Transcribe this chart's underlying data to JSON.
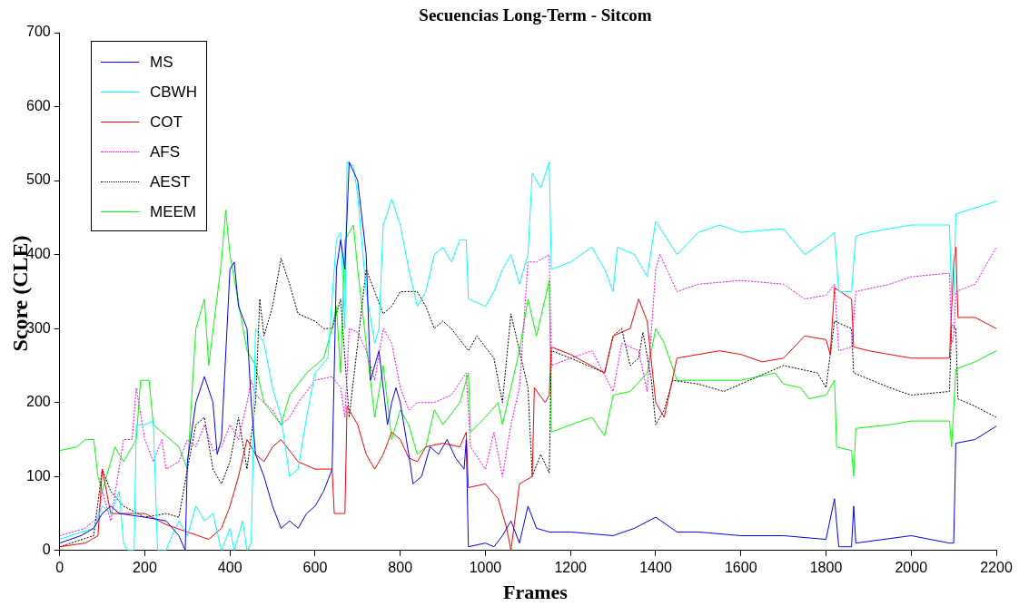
{
  "chart_data": {
    "type": "line",
    "title": "Secuencias Long-Term - Sitcom",
    "xlabel": "Frames",
    "ylabel": "Score (CLE)",
    "xlim": [
      0,
      2200
    ],
    "xticks": [
      0,
      200,
      400,
      600,
      800,
      1000,
      1200,
      1400,
      1600,
      1800,
      2000,
      2200
    ],
    "ylim": [
      0,
      700
    ],
    "yticks": [
      0,
      100,
      200,
      300,
      400,
      500,
      600,
      700
    ],
    "grid": false,
    "legend": "top left",
    "marker": "none",
    "line_style": "solid",
    "series": [
      {
        "name": "MS",
        "color": "#0000ff",
        "x": [
          0,
          50,
          80,
          100,
          120,
          140,
          200,
          250,
          280,
          295,
          300,
          320,
          340,
          360,
          370,
          380,
          400,
          410,
          420,
          440,
          450,
          460,
          480,
          500,
          520,
          540,
          560,
          580,
          600,
          620,
          640,
          650,
          660,
          670,
          680,
          700,
          710,
          720,
          730,
          750,
          770,
          780,
          790,
          800,
          820,
          830,
          850,
          870,
          890,
          910,
          930,
          950,
          955,
          960,
          1000,
          1020,
          1040,
          1060,
          1080,
          1100,
          1120,
          1150,
          1200,
          1300,
          1350,
          1400,
          1450,
          1500,
          1600,
          1700,
          1800,
          1820,
          1830,
          1860,
          1865,
          1870,
          2000,
          2090,
          2100,
          2105,
          2150,
          2200
        ],
        "values": [
          10,
          20,
          30,
          50,
          60,
          50,
          45,
          40,
          20,
          0,
          120,
          200,
          235,
          200,
          130,
          150,
          380,
          390,
          330,
          300,
          200,
          130,
          100,
          60,
          30,
          40,
          30,
          50,
          60,
          80,
          110,
          380,
          420,
          380,
          525,
          500,
          450,
          400,
          230,
          270,
          170,
          200,
          220,
          200,
          130,
          90,
          100,
          140,
          130,
          150,
          125,
          110,
          150,
          5,
          10,
          5,
          20,
          40,
          10,
          60,
          30,
          25,
          25,
          20,
          30,
          45,
          25,
          25,
          20,
          20,
          15,
          70,
          5,
          5,
          60,
          10,
          20,
          10,
          10,
          145,
          150,
          168
        ]
      },
      {
        "name": "CBWH",
        "color": "#00ffff",
        "x": [
          0,
          50,
          80,
          100,
          120,
          140,
          150,
          160,
          175,
          180,
          200,
          220,
          230,
          250,
          260,
          280,
          300,
          320,
          340,
          360,
          380,
          400,
          410,
          430,
          440,
          450,
          460,
          480,
          500,
          520,
          540,
          560,
          580,
          600,
          630,
          650,
          660,
          670,
          675,
          690,
          700,
          720,
          740,
          750,
          760,
          780,
          800,
          820,
          840,
          860,
          880,
          900,
          920,
          940,
          955,
          960,
          1000,
          1020,
          1040,
          1060,
          1080,
          1100,
          1110,
          1130,
          1150,
          1155,
          1200,
          1250,
          1280,
          1300,
          1310,
          1350,
          1380,
          1400,
          1450,
          1500,
          1550,
          1600,
          1700,
          1750,
          1800,
          1820,
          1830,
          1860,
          1870,
          1900,
          2000,
          2090,
          2095,
          2100,
          2105,
          2200
        ],
        "values": [
          15,
          25,
          30,
          60,
          50,
          80,
          10,
          0,
          0,
          170,
          170,
          175,
          0,
          0,
          15,
          40,
          20,
          60,
          40,
          50,
          0,
          30,
          0,
          40,
          0,
          10,
          300,
          280,
          220,
          180,
          100,
          110,
          180,
          240,
          260,
          420,
          430,
          300,
          525,
          520,
          480,
          350,
          280,
          300,
          440,
          475,
          440,
          380,
          330,
          350,
          400,
          410,
          390,
          420,
          420,
          340,
          330,
          350,
          380,
          400,
          360,
          400,
          510,
          490,
          525,
          380,
          390,
          410,
          380,
          350,
          410,
          400,
          370,
          445,
          400,
          430,
          440,
          430,
          435,
          400,
          420,
          430,
          350,
          350,
          425,
          430,
          440,
          440,
          345,
          345,
          455,
          472
        ]
      },
      {
        "name": "COT",
        "color": "#ff0000",
        "x": [
          0,
          60,
          90,
          100,
          120,
          200,
          250,
          300,
          350,
          380,
          400,
          420,
          440,
          460,
          480,
          500,
          520,
          560,
          600,
          640,
          645,
          670,
          675,
          700,
          720,
          740,
          760,
          780,
          800,
          820,
          840,
          860,
          900,
          940,
          955,
          960,
          1000,
          1030,
          1050,
          1060,
          1080,
          1110,
          1115,
          1140,
          1150,
          1155,
          1200,
          1280,
          1300,
          1340,
          1360,
          1380,
          1400,
          1420,
          1450,
          1500,
          1550,
          1600,
          1650,
          1700,
          1750,
          1800,
          1810,
          1820,
          1860,
          1865,
          1900,
          1950,
          2000,
          2090,
          2100,
          2105,
          2110,
          2150,
          2200
        ],
        "values": [
          5,
          10,
          20,
          110,
          50,
          50,
          35,
          25,
          15,
          30,
          60,
          100,
          150,
          130,
          120,
          140,
          150,
          120,
          110,
          110,
          50,
          50,
          195,
          170,
          130,
          110,
          130,
          160,
          150,
          125,
          120,
          140,
          145,
          140,
          160,
          85,
          90,
          70,
          30,
          0,
          90,
          100,
          220,
          200,
          210,
          275,
          265,
          240,
          290,
          300,
          340,
          310,
          200,
          180,
          260,
          265,
          270,
          265,
          255,
          260,
          290,
          285,
          265,
          355,
          340,
          275,
          270,
          265,
          260,
          260,
          390,
          410,
          315,
          315,
          300
        ]
      },
      {
        "name": "AFS",
        "color": "#ff00ff",
        "line_style": "dotted",
        "x": [
          0,
          60,
          90,
          100,
          120,
          150,
          170,
          180,
          200,
          220,
          240,
          250,
          280,
          300,
          320,
          340,
          360,
          380,
          400,
          420,
          440,
          450,
          460,
          480,
          500,
          520,
          540,
          560,
          600,
          640,
          660,
          670,
          680,
          700,
          720,
          740,
          760,
          780,
          800,
          820,
          840,
          880,
          920,
          955,
          965,
          1000,
          1020,
          1040,
          1060,
          1080,
          1100,
          1120,
          1150,
          1155,
          1200,
          1250,
          1300,
          1320,
          1360,
          1380,
          1400,
          1410,
          1450,
          1500,
          1600,
          1700,
          1750,
          1800,
          1820,
          1830,
          1860,
          1870,
          1950,
          2000,
          2090,
          2095,
          2100,
          2105,
          2150,
          2200
        ],
        "values": [
          20,
          30,
          45,
          80,
          40,
          150,
          150,
          220,
          150,
          120,
          150,
          110,
          120,
          150,
          140,
          170,
          135,
          140,
          170,
          150,
          200,
          230,
          210,
          200,
          190,
          170,
          180,
          200,
          230,
          235,
          220,
          180,
          300,
          295,
          270,
          230,
          300,
          280,
          220,
          190,
          200,
          200,
          210,
          240,
          140,
          110,
          160,
          100,
          170,
          220,
          390,
          390,
          400,
          250,
          260,
          270,
          215,
          280,
          270,
          215,
          380,
          400,
          350,
          360,
          365,
          360,
          340,
          345,
          360,
          270,
          275,
          350,
          360,
          370,
          375,
          280,
          290,
          350,
          360,
          410
        ]
      },
      {
        "name": "AEST",
        "color": "#000000",
        "line_style": "dotted",
        "x": [
          0,
          80,
          100,
          120,
          150,
          200,
          250,
          280,
          300,
          320,
          340,
          360,
          380,
          400,
          420,
          440,
          460,
          470,
          480,
          500,
          520,
          540,
          560,
          600,
          620,
          640,
          660,
          680,
          700,
          720,
          740,
          760,
          780,
          800,
          840,
          860,
          880,
          900,
          920,
          960,
          980,
          1000,
          1020,
          1040,
          1060,
          1080,
          1100,
          1110,
          1130,
          1150,
          1155,
          1200,
          1280,
          1300,
          1320,
          1340,
          1360,
          1370,
          1390,
          1400,
          1420,
          1440,
          1500,
          1560,
          1600,
          1700,
          1780,
          1800,
          1820,
          1860,
          1865,
          1950,
          2000,
          2090,
          2095,
          2105,
          2110,
          2150,
          2200
        ],
        "values": [
          5,
          20,
          110,
          80,
          60,
          45,
          50,
          45,
          110,
          170,
          180,
          110,
          90,
          120,
          180,
          110,
          200,
          340,
          290,
          330,
          395,
          360,
          320,
          310,
          300,
          300,
          340,
          180,
          280,
          380,
          350,
          320,
          330,
          350,
          350,
          330,
          300,
          310,
          300,
          270,
          290,
          275,
          260,
          200,
          320,
          270,
          220,
          100,
          130,
          105,
          270,
          260,
          240,
          290,
          300,
          250,
          260,
          295,
          230,
          170,
          190,
          230,
          225,
          215,
          225,
          250,
          240,
          220,
          310,
          300,
          240,
          220,
          210,
          215,
          305,
          300,
          205,
          195,
          180
        ]
      },
      {
        "name": "MEEM",
        "color": "#00ff00",
        "x": [
          0,
          40,
          60,
          80,
          90,
          100,
          130,
          150,
          180,
          190,
          210,
          220,
          280,
          300,
          320,
          340,
          350,
          380,
          390,
          400,
          440,
          460,
          480,
          520,
          540,
          580,
          620,
          640,
          650,
          660,
          670,
          690,
          700,
          720,
          740,
          760,
          780,
          800,
          820,
          840,
          860,
          880,
          900,
          940,
          960,
          965,
          1000,
          1030,
          1040,
          1060,
          1080,
          1100,
          1120,
          1150,
          1155,
          1200,
          1250,
          1280,
          1300,
          1340,
          1380,
          1400,
          1420,
          1450,
          1500,
          1600,
          1680,
          1700,
          1740,
          1760,
          1800,
          1820,
          1825,
          1860,
          1865,
          1870,
          1950,
          2000,
          2090,
          2095,
          2105,
          2150,
          2200
        ],
        "values": [
          135,
          140,
          150,
          150,
          100,
          80,
          140,
          120,
          150,
          230,
          230,
          170,
          140,
          110,
          300,
          340,
          250,
          390,
          460,
          400,
          270,
          250,
          200,
          170,
          210,
          240,
          260,
          300,
          330,
          240,
          420,
          440,
          380,
          280,
          180,
          250,
          150,
          190,
          170,
          130,
          140,
          190,
          170,
          200,
          240,
          160,
          180,
          200,
          170,
          220,
          270,
          340,
          290,
          365,
          160,
          170,
          180,
          155,
          210,
          215,
          240,
          300,
          280,
          230,
          230,
          230,
          240,
          225,
          220,
          205,
          210,
          230,
          140,
          135,
          100,
          165,
          170,
          175,
          175,
          140,
          245,
          255,
          270
        ]
      }
    ]
  }
}
